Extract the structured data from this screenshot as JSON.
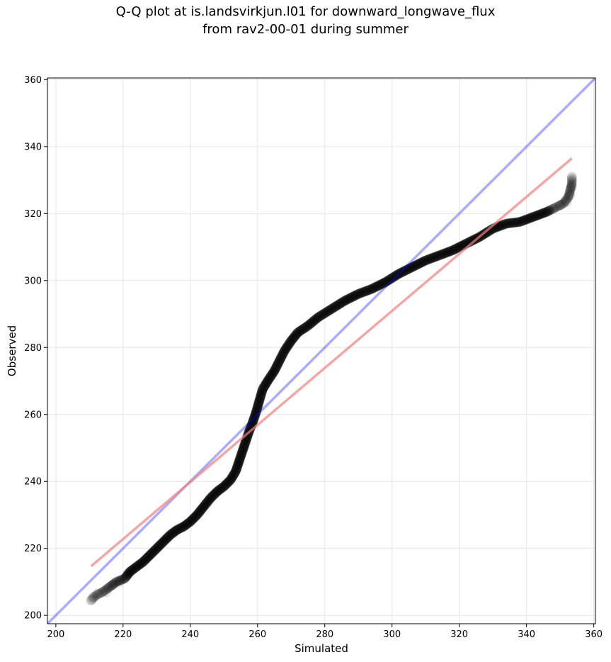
{
  "chart_data": {
    "type": "scatter",
    "title_line1": "Q-Q plot at is.landsvirkjun.l01 for downward_longwave_flux",
    "title_line2": "from rav2-00-01 during summer",
    "xlabel": "Simulated",
    "ylabel": "Observed",
    "xlim": [
      197.5,
      360.5
    ],
    "ylim": [
      197.5,
      360.5
    ],
    "xticks": [
      200,
      220,
      240,
      260,
      280,
      300,
      320,
      340,
      360
    ],
    "yticks": [
      200,
      220,
      240,
      260,
      280,
      300,
      320,
      340,
      360
    ],
    "grid": true,
    "identity_line": {
      "name": "1:1 line",
      "color": "#0000ff",
      "from": [
        197.5,
        197.5
      ],
      "to": [
        360.5,
        360.5
      ]
    },
    "fit_line": {
      "name": "linear fit",
      "color": "#f08080",
      "from": [
        210.5,
        214.7
      ],
      "to": [
        353.5,
        336.5
      ]
    },
    "marker_color": "#000000",
    "quantile_curve": [
      [
        210.5,
        204.5
      ],
      [
        212,
        206
      ],
      [
        214,
        207
      ],
      [
        216,
        208.5
      ],
      [
        218,
        210
      ],
      [
        220.5,
        211
      ],
      [
        222,
        213
      ],
      [
        224,
        214.5
      ],
      [
        226,
        216
      ],
      [
        228,
        218
      ],
      [
        230,
        220
      ],
      [
        232,
        222
      ],
      [
        234,
        224
      ],
      [
        236,
        225.5
      ],
      [
        238,
        226.5
      ],
      [
        240,
        228
      ],
      [
        242,
        230
      ],
      [
        244,
        232.5
      ],
      [
        246,
        235
      ],
      [
        248,
        237
      ],
      [
        250,
        238.5
      ],
      [
        252,
        240.5
      ],
      [
        253.5,
        243
      ],
      [
        254.5,
        246
      ],
      [
        255.5,
        249
      ],
      [
        256.5,
        252
      ],
      [
        257.5,
        255
      ],
      [
        258.5,
        257.5
      ],
      [
        259.5,
        260.5
      ],
      [
        260.5,
        264
      ],
      [
        261.5,
        267.5
      ],
      [
        263,
        270
      ],
      [
        265,
        273
      ],
      [
        266.5,
        276
      ],
      [
        268,
        279
      ],
      [
        270,
        282
      ],
      [
        272,
        284.5
      ],
      [
        275,
        286.5
      ],
      [
        278,
        289
      ],
      [
        282,
        291.5
      ],
      [
        286,
        294
      ],
      [
        290,
        296
      ],
      [
        294,
        297.5
      ],
      [
        298,
        299.5
      ],
      [
        302,
        302
      ],
      [
        306,
        304
      ],
      [
        310,
        306
      ],
      [
        314,
        307.5
      ],
      [
        318,
        309
      ],
      [
        322,
        311
      ],
      [
        326,
        313
      ],
      [
        330,
        315.5
      ],
      [
        334,
        317
      ],
      [
        338,
        317.5
      ],
      [
        342,
        319
      ],
      [
        346,
        320.5
      ],
      [
        349,
        322
      ],
      [
        351,
        323
      ],
      [
        352.5,
        325
      ],
      [
        353,
        327
      ],
      [
        353.5,
        329
      ],
      [
        353.5,
        331
      ]
    ],
    "faded_points": [
      [
        210.5,
        204.5
      ],
      [
        211,
        205.5
      ],
      [
        212.5,
        206.5
      ],
      [
        215,
        207
      ],
      [
        217,
        209
      ],
      [
        219,
        210
      ],
      [
        348,
        321.5
      ],
      [
        350,
        322.5
      ],
      [
        352,
        323.5
      ],
      [
        353,
        325.5
      ],
      [
        353.5,
        328
      ],
      [
        353.5,
        331
      ]
    ]
  }
}
